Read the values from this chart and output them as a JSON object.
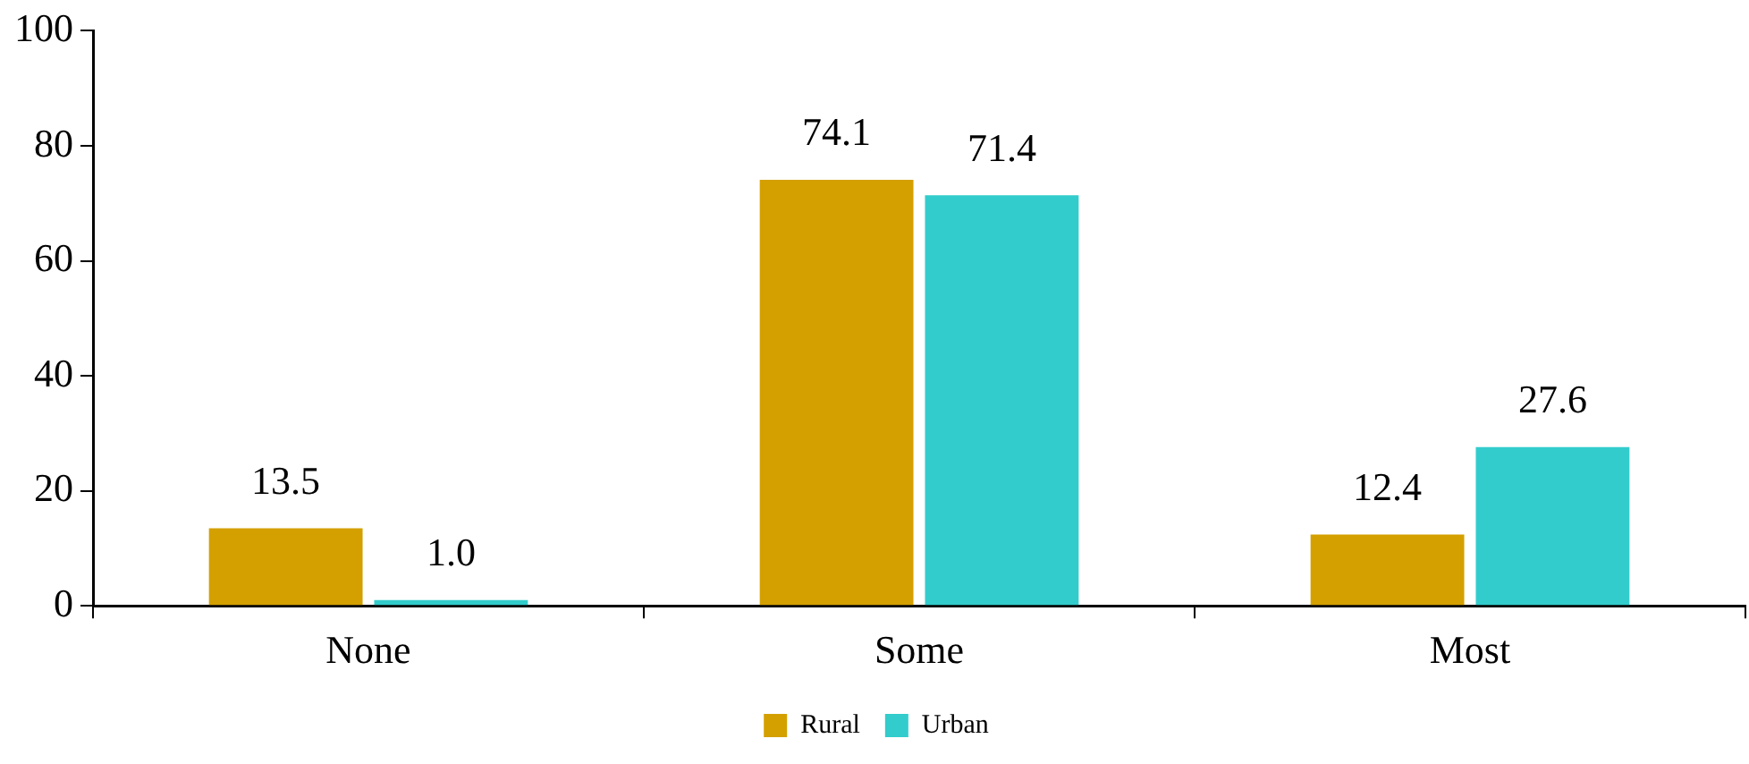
{
  "chart_data": {
    "type": "bar",
    "categories": [
      "None",
      "Some",
      "Most"
    ],
    "series": [
      {
        "name": "Rural",
        "color": "#d4a000",
        "values": [
          13.5,
          74.1,
          12.4
        ],
        "value_labels": [
          "13.5",
          "74.1",
          "12.4"
        ]
      },
      {
        "name": "Urban",
        "color": "#33cccc",
        "values": [
          1.0,
          71.4,
          27.6
        ],
        "value_labels": [
          "1.0",
          "71.4",
          "27.6"
        ]
      }
    ],
    "ylim": [
      0,
      100
    ],
    "yticks": [
      0,
      20,
      40,
      60,
      80,
      100
    ],
    "grid": false,
    "legend": "bottom"
  }
}
